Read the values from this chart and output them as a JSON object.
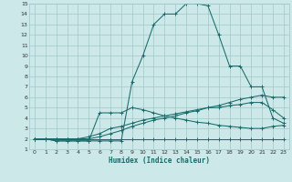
{
  "bg_color": "#cde8e8",
  "grid_color": "#a0c8c8",
  "line_color": "#1a6b6b",
  "xlabel": "Humidex (Indice chaleur)",
  "xlim": [
    -0.5,
    23.5
  ],
  "ylim": [
    1,
    15
  ],
  "xticks": [
    0,
    1,
    2,
    3,
    4,
    5,
    6,
    7,
    8,
    9,
    10,
    11,
    12,
    13,
    14,
    15,
    16,
    17,
    18,
    19,
    20,
    21,
    22,
    23
  ],
  "yticks": [
    1,
    2,
    3,
    4,
    5,
    6,
    7,
    8,
    9,
    10,
    11,
    12,
    13,
    14,
    15
  ],
  "series": [
    {
      "x": [
        0,
        1,
        2,
        3,
        4,
        5,
        6,
        7,
        8,
        9,
        10,
        11,
        12,
        13,
        14,
        15,
        16,
        17,
        18,
        19,
        20,
        21,
        22,
        23
      ],
      "y": [
        2,
        2,
        2,
        2,
        2,
        2,
        2,
        2,
        2,
        2,
        2,
        2,
        2,
        2,
        2,
        2,
        2,
        2,
        2,
        2,
        2,
        2,
        2,
        2
      ]
    },
    {
      "x": [
        0,
        1,
        2,
        3,
        4,
        5,
        6,
        7,
        8,
        9,
        10,
        11,
        12,
        13,
        14,
        15,
        16,
        17,
        18,
        19,
        20,
        21,
        22,
        23
      ],
      "y": [
        2,
        2,
        2,
        2,
        2,
        2,
        2.2,
        2.5,
        2.8,
        3.2,
        3.5,
        3.8,
        4.0,
        4.2,
        4.5,
        4.7,
        5.0,
        5.2,
        5.5,
        5.8,
        6.0,
        6.2,
        6.0,
        6.0
      ]
    },
    {
      "x": [
        0,
        1,
        2,
        3,
        4,
        5,
        6,
        7,
        8,
        9,
        10,
        11,
        12,
        13,
        14,
        15,
        16,
        17,
        18,
        19,
        20,
        21,
        22,
        23
      ],
      "y": [
        2,
        2,
        2,
        2,
        2,
        2.2,
        2.5,
        3.0,
        3.2,
        3.5,
        3.8,
        4.0,
        4.2,
        4.4,
        4.6,
        4.8,
        5.0,
        5.0,
        5.2,
        5.3,
        5.5,
        5.5,
        4.8,
        4.0
      ]
    },
    {
      "x": [
        0,
        1,
        2,
        3,
        4,
        5,
        6,
        7,
        8,
        9,
        10,
        11,
        12,
        13,
        14,
        15,
        16,
        17,
        18,
        19,
        20,
        21,
        22,
        23
      ],
      "y": [
        2,
        2,
        1.8,
        1.8,
        1.8,
        1.8,
        4.5,
        4.5,
        4.5,
        5.0,
        4.8,
        4.5,
        4.2,
        4.0,
        3.8,
        3.6,
        3.5,
        3.3,
        3.2,
        3.1,
        3.0,
        3.0,
        3.2,
        3.3
      ]
    },
    {
      "x": [
        0,
        1,
        2,
        3,
        4,
        5,
        6,
        7,
        8,
        9,
        10,
        11,
        12,
        13,
        14,
        15,
        16,
        17,
        18,
        19,
        20,
        21,
        22,
        23
      ],
      "y": [
        2,
        2,
        1.8,
        1.8,
        1.8,
        1.8,
        1.8,
        1.8,
        1.8,
        7.5,
        10.0,
        13.0,
        14.0,
        14.0,
        15.0,
        15.0,
        14.8,
        12.0,
        9.0,
        9.0,
        7.0,
        7.0,
        4.0,
        3.5
      ]
    }
  ]
}
